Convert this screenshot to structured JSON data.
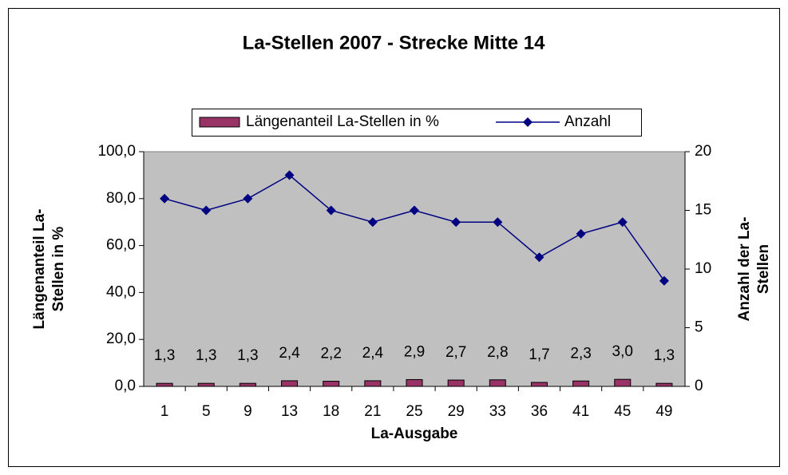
{
  "chart_data": {
    "type": "bar",
    "title": "La-Stellen 2007 - Strecke Mitte 14",
    "x_label": "La-Ausgabe",
    "y_label": [
      "Längenanteil La-",
      "Stellen in %"
    ],
    "y2_label": [
      "Anzahl der La-",
      "Stellen"
    ],
    "categories": [
      "1",
      "5",
      "9",
      "13",
      "18",
      "21",
      "25",
      "29",
      "33",
      "36",
      "41",
      "45",
      "49"
    ],
    "series": [
      {
        "name": "Längenanteil La-Stellen in %",
        "type": "bar",
        "color": "#993366",
        "values": [
          1.3,
          1.3,
          1.3,
          2.4,
          2.2,
          2.4,
          2.9,
          2.7,
          2.8,
          1.7,
          2.3,
          3.0,
          1.3
        ],
        "value_labels": [
          "1,3",
          "1,3",
          "1,3",
          "2,4",
          "2,2",
          "2,4",
          "2,9",
          "2,7",
          "2,8",
          "1,7",
          "2,3",
          "3,0",
          "1,3"
        ]
      },
      {
        "name": "Anzahl",
        "type": "line",
        "axis": "y2",
        "color": "#000080",
        "values": [
          16,
          15,
          16,
          18,
          15,
          14,
          15,
          14,
          14,
          11,
          13,
          14,
          9
        ]
      }
    ],
    "ylim": [
      0,
      100
    ],
    "yticks": [
      {
        "value": 0,
        "label": "0,0"
      },
      {
        "value": 20,
        "label": "20,0"
      },
      {
        "value": 40,
        "label": "40,0"
      },
      {
        "value": 60,
        "label": "60,0"
      },
      {
        "value": 80,
        "label": "80,0"
      },
      {
        "value": 100,
        "label": "100,0"
      }
    ],
    "y2lim": [
      0,
      20
    ],
    "y2ticks": [
      0,
      5,
      10,
      15,
      20
    ],
    "plot_background": "#c0c0c0"
  }
}
